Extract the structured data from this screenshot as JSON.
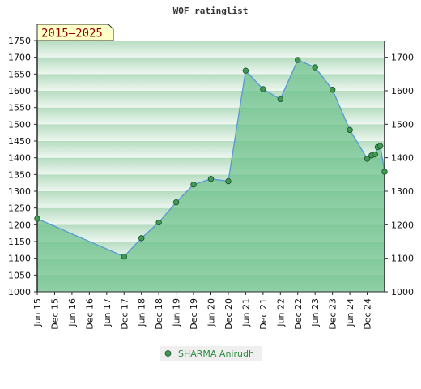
{
  "chart_data": {
    "type": "area",
    "title": "WOF ratinglist",
    "badge": "2015–2025",
    "x_ticks": [
      "Jun 15",
      "Dec 15",
      "Jun 16",
      "Dec 16",
      "Jun 17",
      "Dec 17",
      "Jun 18",
      "Dec 18",
      "Jun 19",
      "Dec 19",
      "Jun 20",
      "Dec 20",
      "Jun 21",
      "Dec 21",
      "Jun 22",
      "Dec 22",
      "Jun 23",
      "Dec 23",
      "Jun 24",
      "Dec 24"
    ],
    "ylim": [
      1000,
      1750
    ],
    "y_ticks_left": [
      1000,
      1050,
      1100,
      1150,
      1200,
      1250,
      1300,
      1350,
      1400,
      1450,
      1500,
      1550,
      1600,
      1650,
      1700,
      1750
    ],
    "y_ticks_right": [
      1000,
      1100,
      1200,
      1300,
      1400,
      1500,
      1600,
      1700
    ],
    "series": [
      {
        "name": "SHARMA Anirudh",
        "x": [
          0,
          5,
          6,
          7,
          8,
          9,
          10,
          11,
          12,
          13,
          14,
          15,
          16,
          17,
          18,
          19,
          19.25,
          19.45,
          19.6,
          19.75,
          20
        ],
        "values": [
          1218,
          1105,
          1160,
          1207,
          1267,
          1320,
          1337,
          1330,
          1660,
          1605,
          1575,
          1692,
          1670,
          1603,
          1483,
          1397,
          1407,
          1410,
          1432,
          1435,
          1358
        ]
      }
    ],
    "colors": {
      "line": "#5b9bd5",
      "fill": "#6cc08a",
      "marker": "#3f9a54",
      "band_dark": "#b5dcc0",
      "band_light": "#eef7f0"
    }
  }
}
